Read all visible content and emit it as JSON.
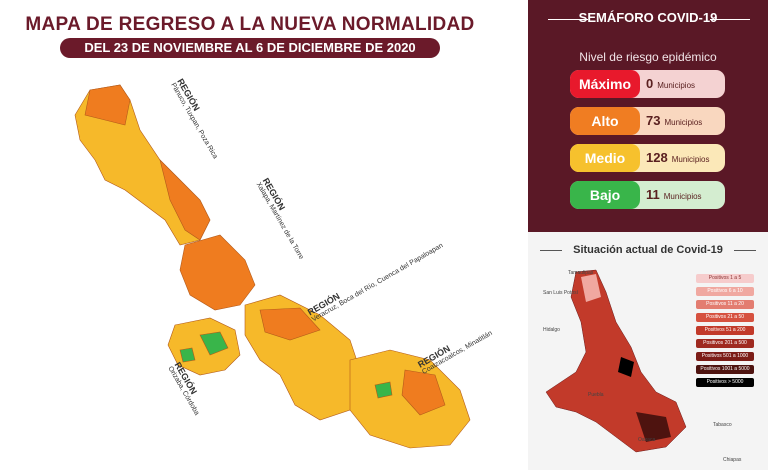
{
  "header": {
    "title": "MAPA DE REGRESO A LA NUEVA NORMALIDAD",
    "subtitle": "DEL 23 DE NOVIEMBRE AL 6 DE DICIEMBRE DE 2020"
  },
  "regions": [
    {
      "label": "REGIÓN",
      "sub": "Pánuco, Tuxpan, Poza Rica"
    },
    {
      "label": "REGIÓN",
      "sub": "Xalapa, Martínez de la Torre"
    },
    {
      "label": "REGIÓN",
      "sub": "Veracruz, Boca del Río, Cuenca del Papaloapan"
    },
    {
      "label": "REGIÓN",
      "sub": "Orizaba, Córdoba"
    },
    {
      "label": "REGIÓN",
      "sub": "Coatzacoalcos, Minatitlán"
    }
  ],
  "semaforo": {
    "title": "SEMÁFORO COVID-19",
    "subtitle": "Nivel de riesgo epidémico",
    "unit": "Municipios",
    "levels": [
      {
        "name": "Máximo",
        "count": "0",
        "color": "#e8192c"
      },
      {
        "name": "Alto",
        "count": "73",
        "color": "#f07d22"
      },
      {
        "name": "Medio",
        "count": "128",
        "color": "#f6c12d"
      },
      {
        "name": "Bajo",
        "count": "11",
        "color": "#39b54a"
      }
    ]
  },
  "situacion": {
    "title": "Situación actual de Covid-19",
    "legend": [
      {
        "label": "Positivos 1 a 5",
        "color": "#f6cccc"
      },
      {
        "label": "Positivos 6 a 10",
        "color": "#f0a8a0"
      },
      {
        "label": "Positivos 11 a 20",
        "color": "#e37d70"
      },
      {
        "label": "Positivos 21 a 50",
        "color": "#d6513f"
      },
      {
        "label": "Positivos 51 a 200",
        "color": "#c23a2a"
      },
      {
        "label": "Positivos 201 a 500",
        "color": "#9f2a20"
      },
      {
        "label": "Positivos 501 a 1000",
        "color": "#7c1d17"
      },
      {
        "label": "Positivos 1001 a 5000",
        "color": "#4e130f"
      },
      {
        "label": "Positivos > 5000",
        "color": "#000000"
      }
    ],
    "cities": [
      "Tamaulipas",
      "San Luis Potosí",
      "Hidalgo",
      "Puebla",
      "Oaxaca",
      "Tabasco",
      "Chiapas"
    ]
  }
}
